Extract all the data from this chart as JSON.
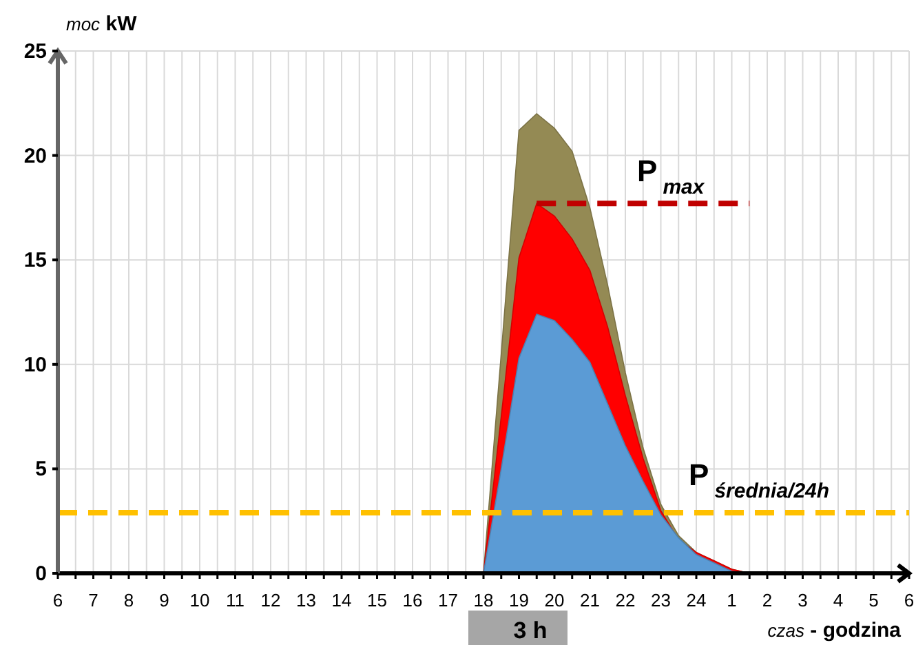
{
  "chart_data": {
    "type": "area",
    "xlabel": "czas - godzina",
    "ylabel": "moc kW",
    "categories": [
      "6",
      null,
      "7",
      null,
      "8",
      null,
      "9",
      null,
      "10",
      null,
      "11",
      null,
      "12",
      null,
      "13",
      null,
      "14",
      null,
      "15",
      null,
      "16",
      null,
      "17",
      null,
      "18",
      null,
      "19",
      null,
      "20",
      null,
      "21",
      null,
      "22",
      null,
      "23",
      null,
      "24",
      null,
      "1",
      null,
      "2",
      null,
      "3",
      null,
      "4",
      null,
      "5",
      null,
      "6"
    ],
    "series": [
      {
        "color": "#948a54",
        "values": [
          null,
          null,
          null,
          null,
          null,
          null,
          null,
          null,
          null,
          null,
          null,
          null,
          null,
          null,
          null,
          null,
          null,
          null,
          null,
          null,
          null,
          null,
          null,
          null,
          0,
          10.5,
          21.2,
          22.0,
          21.3,
          20.2,
          17.5,
          13.8,
          9.6,
          6.0,
          3.3,
          1.8,
          1.0,
          0.6,
          0.2,
          0,
          null,
          null,
          null,
          null,
          null,
          null,
          null,
          null,
          null
        ]
      },
      {
        "color": "#ff0000",
        "values": [
          null,
          null,
          null,
          null,
          null,
          null,
          null,
          null,
          null,
          null,
          null,
          null,
          null,
          null,
          null,
          null,
          null,
          null,
          null,
          null,
          null,
          null,
          null,
          null,
          0,
          7.5,
          15.1,
          17.7,
          17.1,
          16.0,
          14.5,
          11.8,
          8.5,
          5.5,
          3.0,
          1.6,
          1.0,
          0.6,
          0.2,
          0,
          null,
          null,
          null,
          null,
          null,
          null,
          null,
          null,
          null
        ]
      },
      {
        "color": "#5b9bd5",
        "values": [
          null,
          null,
          null,
          null,
          null,
          null,
          null,
          null,
          null,
          null,
          null,
          null,
          null,
          null,
          null,
          null,
          null,
          null,
          null,
          null,
          null,
          null,
          null,
          null,
          0,
          5.0,
          10.3,
          12.4,
          12.1,
          11.2,
          10.1,
          8.1,
          6.1,
          4.4,
          2.8,
          1.7,
          0.9,
          0.5,
          0.1,
          0,
          null,
          null,
          null,
          null,
          null,
          null,
          null,
          null,
          null
        ]
      },
      {
        "type": "line",
        "name": "P$_{max}$",
        "color": "#c00000",
        "line_style": "dashed",
        "values": [
          null,
          null,
          null,
          null,
          null,
          null,
          null,
          null,
          null,
          null,
          null,
          null,
          null,
          null,
          null,
          null,
          null,
          null,
          null,
          null,
          null,
          null,
          null,
          null,
          null,
          null,
          null,
          17.7,
          17.7,
          17.7,
          17.7,
          17.7,
          17.7,
          17.7,
          17.7,
          17.7,
          17.7,
          17.7,
          17.7,
          17.7,
          null,
          null,
          null,
          null,
          null,
          null,
          null,
          null,
          null
        ]
      }
    ],
    "ref_lines": [
      {
        "axis": "y",
        "value": 2.9,
        "label": "P$_{średnia/24h}$",
        "color": "#ffc000",
        "line_style": "dashed"
      }
    ],
    "annotations": [
      "3 h"
    ],
    "ylim": [
      0,
      25
    ],
    "yticks": [
      0,
      5,
      10,
      15,
      20,
      25
    ],
    "grid": true
  }
}
